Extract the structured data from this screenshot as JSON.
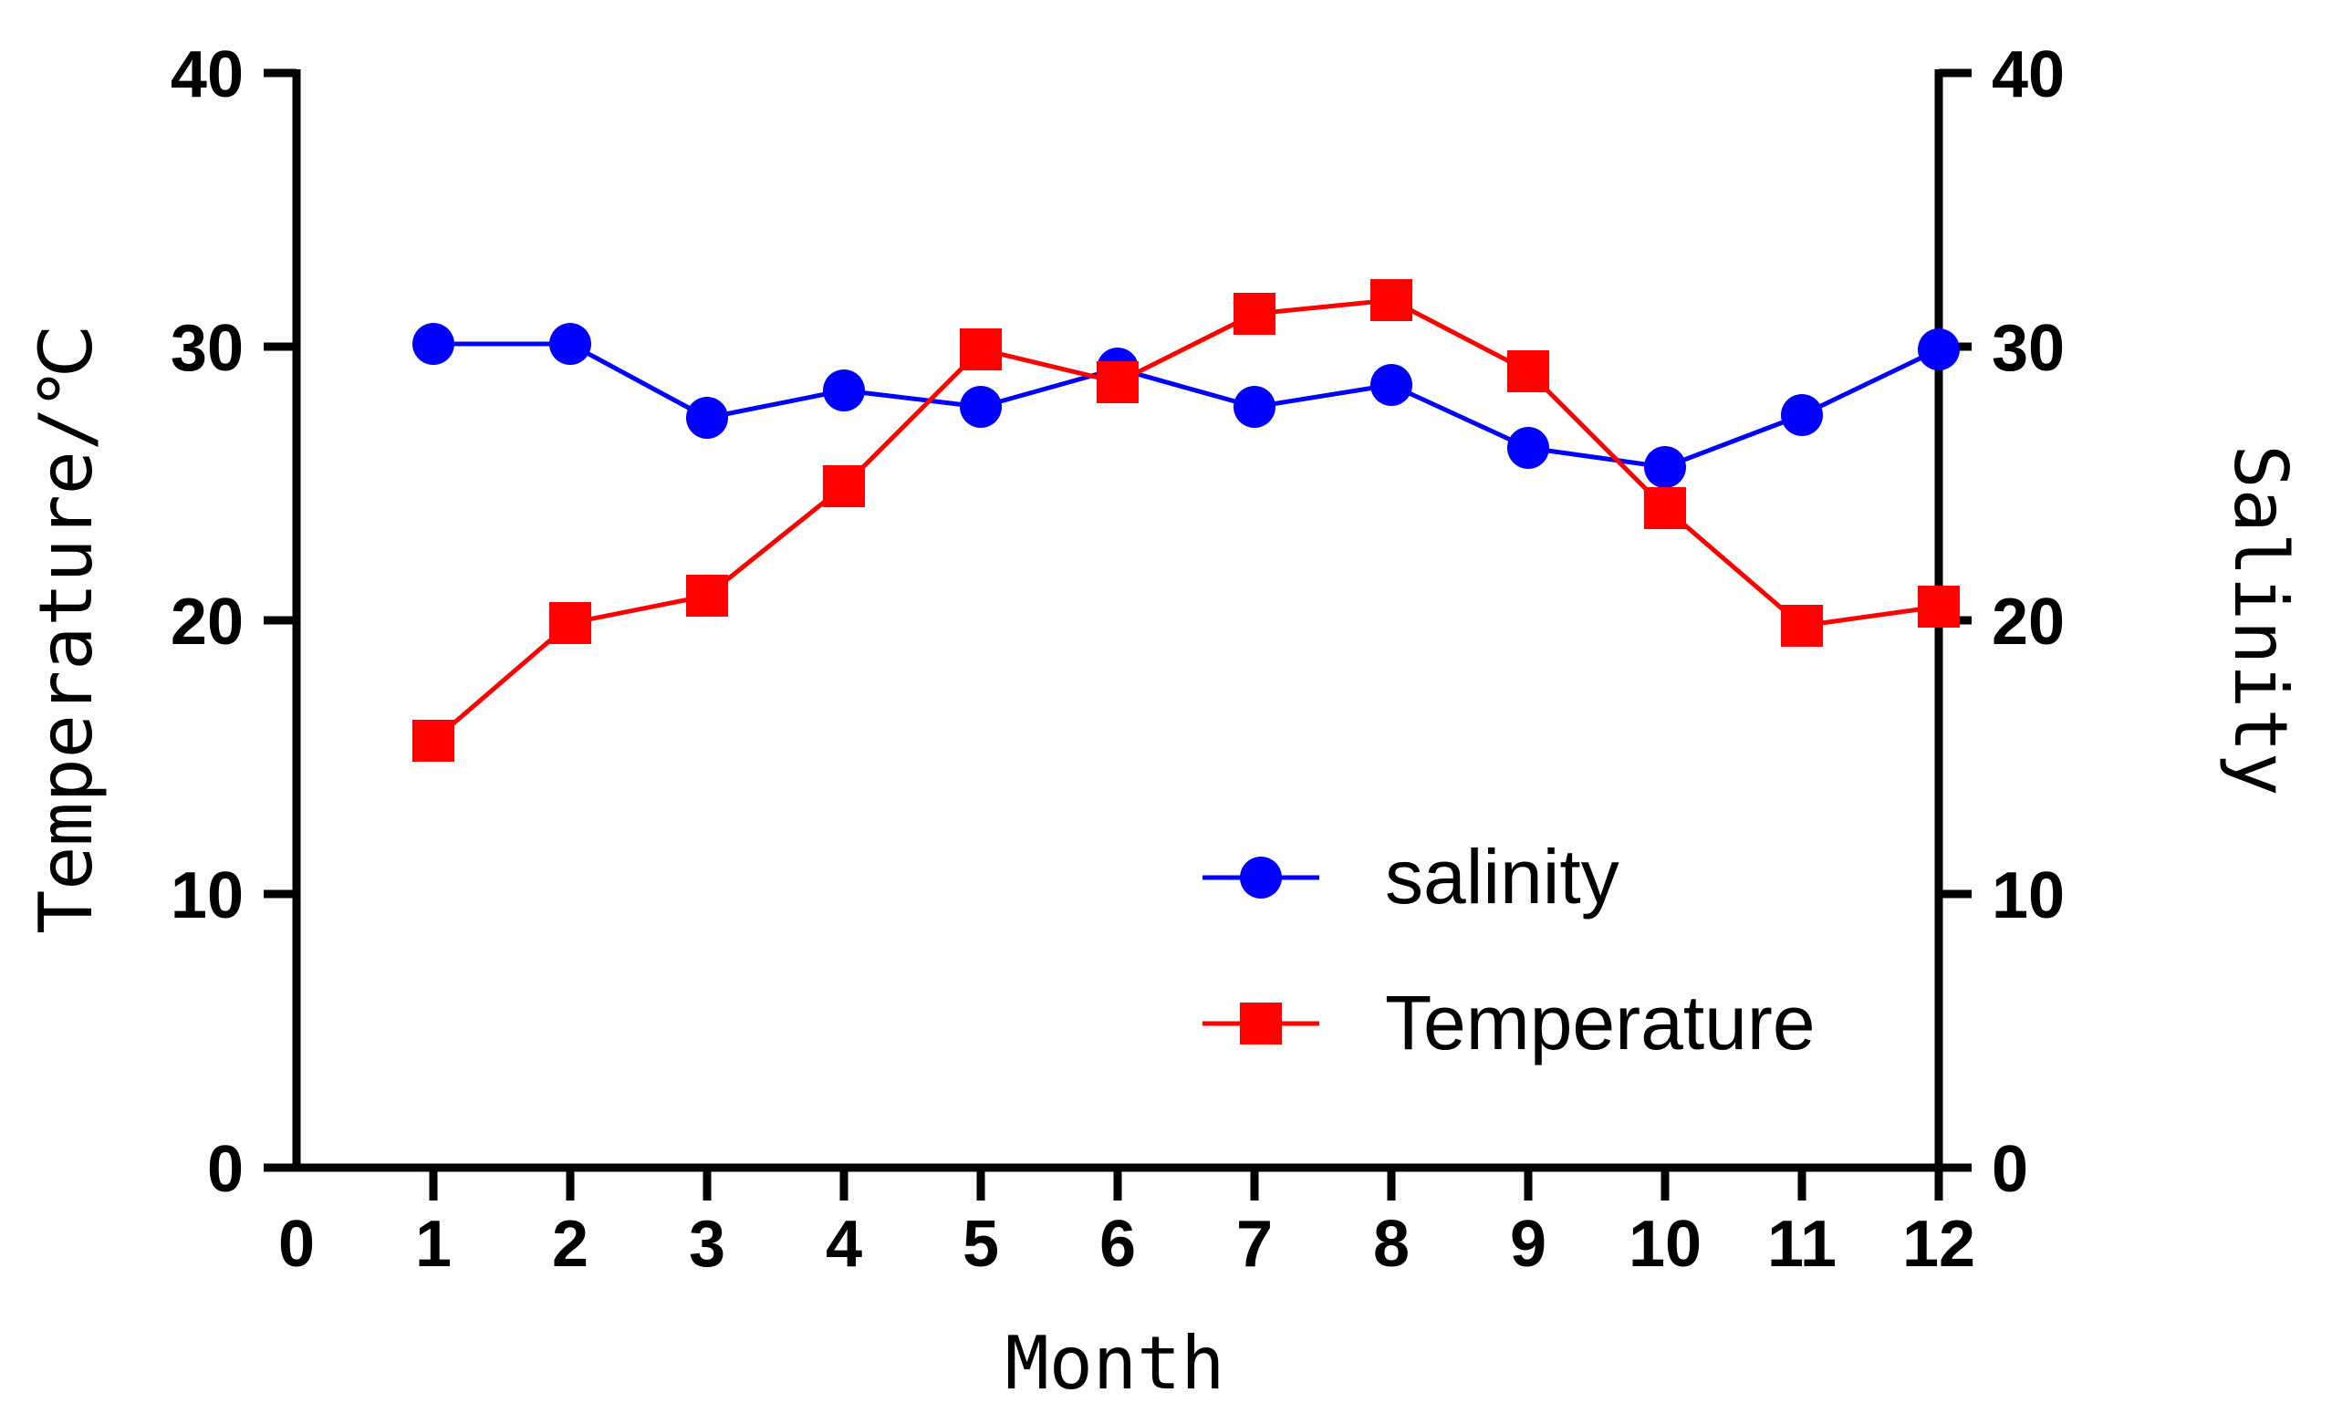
{
  "chart_data": {
    "type": "line",
    "title": "",
    "xlabel": "Month",
    "ylabel_left": "Temperature/℃",
    "ylabel_right": "Salinity",
    "xlim": [
      0,
      12
    ],
    "ylim_left": [
      0,
      40
    ],
    "ylim_right": [
      0,
      40
    ],
    "x_ticks": [
      "0",
      "1",
      "2",
      "3",
      "4",
      "5",
      "6",
      "7",
      "8",
      "9",
      "10",
      "11",
      "12"
    ],
    "y_ticks_left": [
      "0",
      "10",
      "20",
      "30",
      "40"
    ],
    "y_ticks_right": [
      "0",
      "10",
      "20",
      "30",
      "40"
    ],
    "grid": false,
    "legend_position": "bottom-right",
    "series": [
      {
        "name": "salinity",
        "axis": "right",
        "color": "#0000ff",
        "marker": "circle",
        "x": [
          1,
          2,
          3,
          4,
          5,
          6,
          7,
          8,
          9,
          10,
          11,
          12
        ],
        "values": [
          30.1,
          30.1,
          27.4,
          28.4,
          27.8,
          29.2,
          27.8,
          28.6,
          26.3,
          25.6,
          27.5,
          29.9
        ]
      },
      {
        "name": "Temperature",
        "axis": "left",
        "color": "#ff0000",
        "marker": "square",
        "x": [
          1,
          2,
          3,
          4,
          5,
          6,
          7,
          8,
          9,
          10,
          11,
          12
        ],
        "values": [
          15.6,
          19.9,
          20.9,
          24.9,
          29.9,
          28.7,
          31.2,
          31.7,
          29.1,
          24.1,
          19.8,
          20.5
        ]
      }
    ]
  }
}
